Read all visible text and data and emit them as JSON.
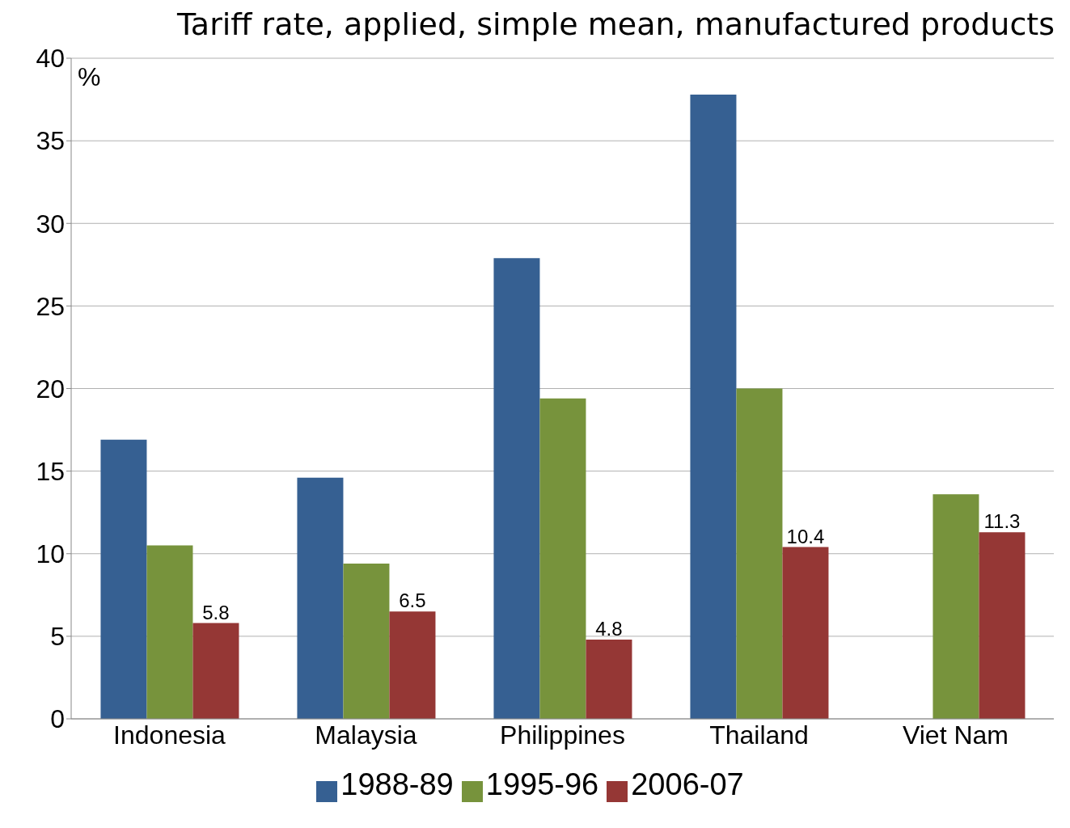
{
  "chart_data": {
    "type": "bar",
    "title": "Tariff rate, applied, simple mean, manufactured products",
    "ylabel": "%",
    "categories": [
      "Indonesia",
      "Malaysia",
      "Philippines",
      "Thailand",
      "Viet Nam"
    ],
    "series": [
      {
        "name": "1988-89",
        "color": "#366092",
        "values": [
          16.9,
          14.6,
          27.9,
          37.8,
          null
        ]
      },
      {
        "name": "1995-96",
        "color": "#77933c",
        "values": [
          10.5,
          9.4,
          19.4,
          20.0,
          13.6
        ]
      },
      {
        "name": "2006-07",
        "color": "#953735",
        "values": [
          5.8,
          6.5,
          4.8,
          10.4,
          11.3
        ],
        "value_labels": [
          "5.8",
          "6.5",
          "4.8",
          "10.4",
          "11.3"
        ]
      }
    ],
    "ylim": [
      0,
      40
    ],
    "yticks": [
      0,
      5,
      10,
      15,
      20,
      25,
      30,
      35,
      40
    ],
    "grid": "y",
    "legend": "bottom"
  }
}
